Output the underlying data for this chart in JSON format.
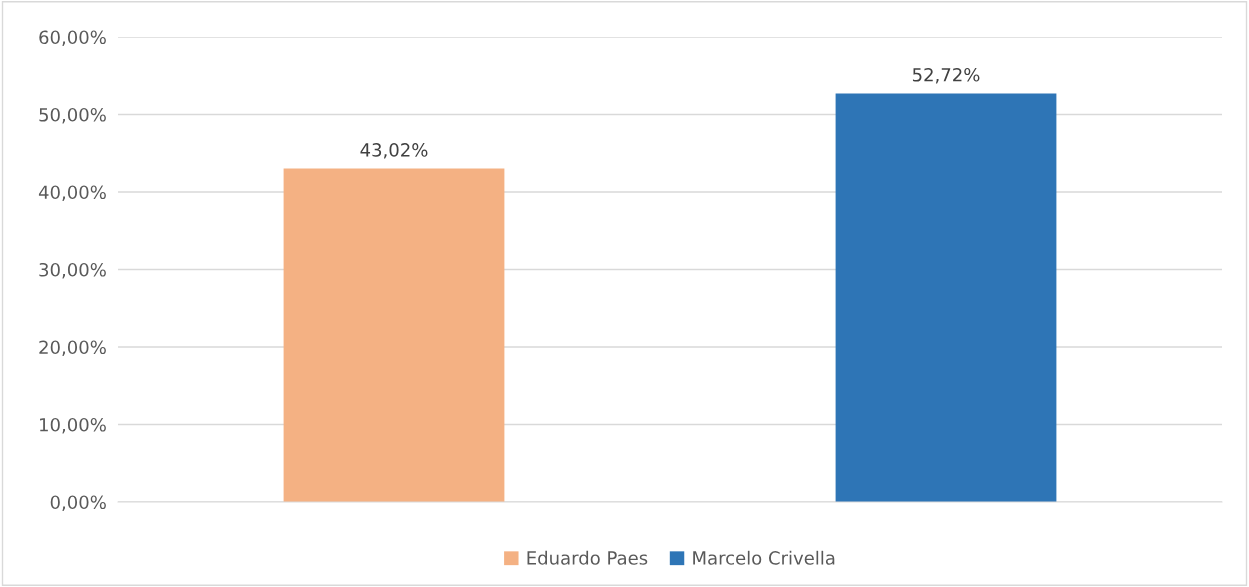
{
  "chart_data": {
    "type": "bar",
    "categories": [
      null
    ],
    "series": [
      {
        "name": "Eduardo Paes",
        "color": "#f4b183",
        "values": [
          43.02
        ],
        "value_labels": [
          "43,02%"
        ]
      },
      {
        "name": "Marcelo Crivella",
        "color": "#2e75b6",
        "values": [
          52.72
        ],
        "value_labels": [
          "52,72%"
        ]
      }
    ],
    "ylim": [
      0,
      60
    ],
    "yticks": [
      {
        "value": 0,
        "label": "0,00%"
      },
      {
        "value": 10,
        "label": "10,00%"
      },
      {
        "value": 20,
        "label": "20,00%"
      },
      {
        "value": 30,
        "label": "30,00%"
      },
      {
        "value": 40,
        "label": "40,00%"
      },
      {
        "value": 50,
        "label": "50,00%"
      },
      {
        "value": 60,
        "label": "60,00%"
      }
    ],
    "grid": "y",
    "legend": "bottom"
  }
}
